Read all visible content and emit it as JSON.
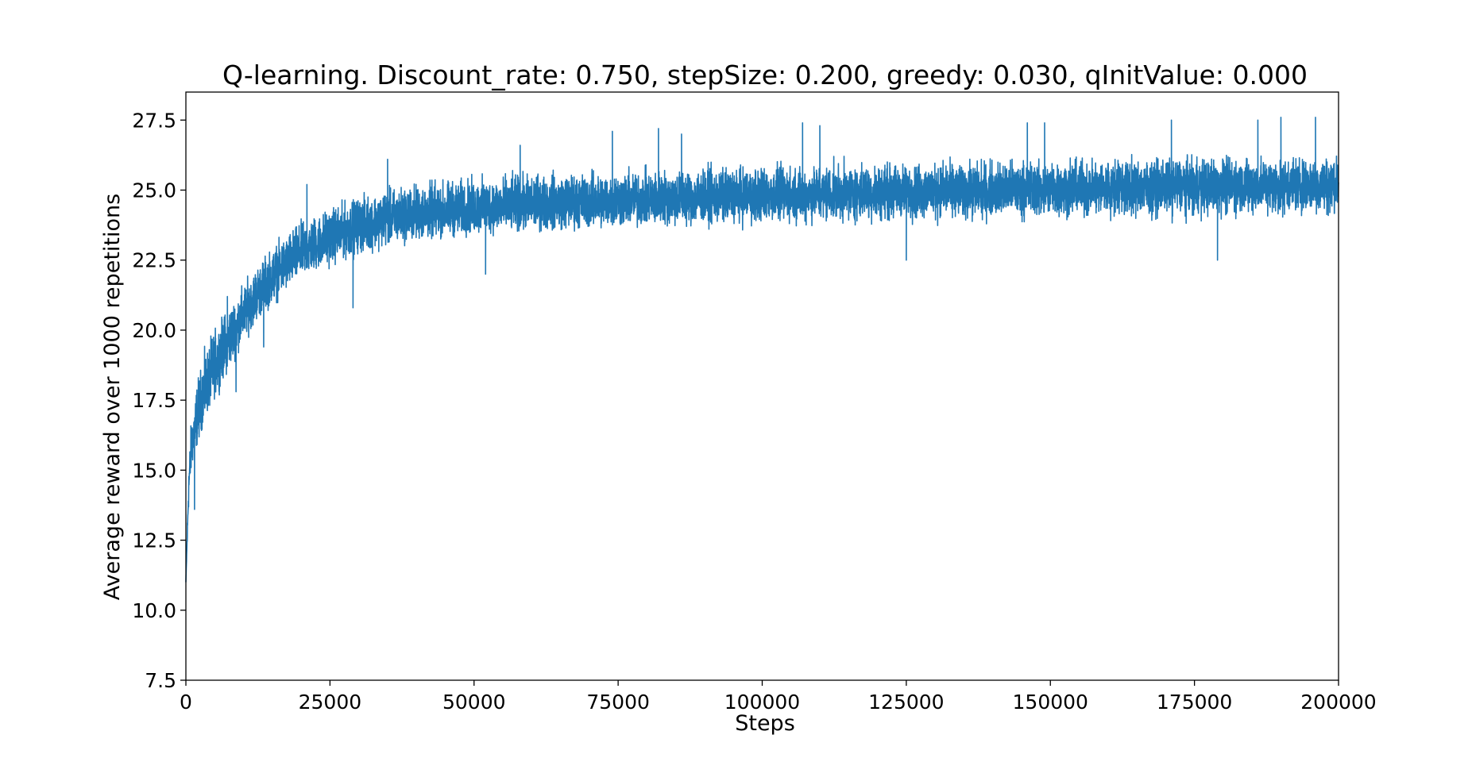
{
  "chart_data": {
    "type": "line",
    "title": "Q-learning. Discount_rate: 0.750, stepSize: 0.200, greedy: 0.030, qInitValue: 0.000",
    "xlabel": "Steps",
    "ylabel": "Average reward over 1000 repetitions",
    "xlim": [
      0,
      200000
    ],
    "ylim": [
      7.5,
      28.5
    ],
    "xticks": [
      0,
      25000,
      50000,
      75000,
      100000,
      125000,
      150000,
      175000,
      200000
    ],
    "xtick_labels": [
      "0",
      "25000",
      "50000",
      "75000",
      "100000",
      "125000",
      "150000",
      "175000",
      "200000"
    ],
    "yticks": [
      7.5,
      10.0,
      12.5,
      15.0,
      17.5,
      20.0,
      22.5,
      25.0,
      27.5
    ],
    "ytick_labels": [
      "7.5",
      "10.0",
      "12.5",
      "15.0",
      "17.5",
      "20.0",
      "22.5",
      "25.0",
      "27.5"
    ],
    "grid": false,
    "legend": "none",
    "series": [
      {
        "color": "#1f77b4",
        "trend": {
          "x": [
            0,
            500,
            1000,
            2000,
            3000,
            5000,
            7500,
            10000,
            12500,
            15000,
            20000,
            25000,
            30000,
            35000,
            40000,
            50000,
            60000,
            75000,
            100000,
            125000,
            150000,
            175000,
            200000
          ],
          "mean": [
            11.0,
            14.5,
            15.8,
            16.8,
            17.6,
            18.6,
            19.6,
            20.5,
            21.3,
            21.9,
            22.8,
            23.3,
            23.7,
            23.95,
            24.1,
            24.3,
            24.45,
            24.6,
            24.8,
            24.95,
            25.05,
            25.15,
            25.2
          ],
          "lower": [
            11.0,
            13.5,
            14.8,
            15.6,
            16.3,
            17.3,
            18.3,
            19.3,
            20.1,
            20.6,
            21.5,
            22.0,
            22.4,
            22.7,
            22.9,
            23.1,
            23.25,
            23.35,
            23.5,
            23.6,
            23.7,
            23.75,
            23.8
          ],
          "upper": [
            11.0,
            15.5,
            17.5,
            18.7,
            19.5,
            20.5,
            21.3,
            22.0,
            22.7,
            23.3,
            24.2,
            24.7,
            25.1,
            25.4,
            25.6,
            25.8,
            25.95,
            26.05,
            26.2,
            26.3,
            26.4,
            26.5,
            26.55
          ]
        },
        "spikes": [
          {
            "x": 1500,
            "y": 13.6
          },
          {
            "x": 7200,
            "y": 21.2
          },
          {
            "x": 8700,
            "y": 17.8
          },
          {
            "x": 13500,
            "y": 19.4
          },
          {
            "x": 21000,
            "y": 25.2
          },
          {
            "x": 29000,
            "y": 20.8
          },
          {
            "x": 35000,
            "y": 26.1
          },
          {
            "x": 52000,
            "y": 22.0
          },
          {
            "x": 58000,
            "y": 26.6
          },
          {
            "x": 74000,
            "y": 27.1
          },
          {
            "x": 82000,
            "y": 27.2
          },
          {
            "x": 86000,
            "y": 27.0
          },
          {
            "x": 107000,
            "y": 27.4
          },
          {
            "x": 110000,
            "y": 27.3
          },
          {
            "x": 125000,
            "y": 22.5
          },
          {
            "x": 146000,
            "y": 27.4
          },
          {
            "x": 149000,
            "y": 27.4
          },
          {
            "x": 171000,
            "y": 27.5
          },
          {
            "x": 179000,
            "y": 22.5
          },
          {
            "x": 186000,
            "y": 27.5
          },
          {
            "x": 190000,
            "y": 27.6
          },
          {
            "x": 196000,
            "y": 27.6
          }
        ]
      }
    ]
  }
}
